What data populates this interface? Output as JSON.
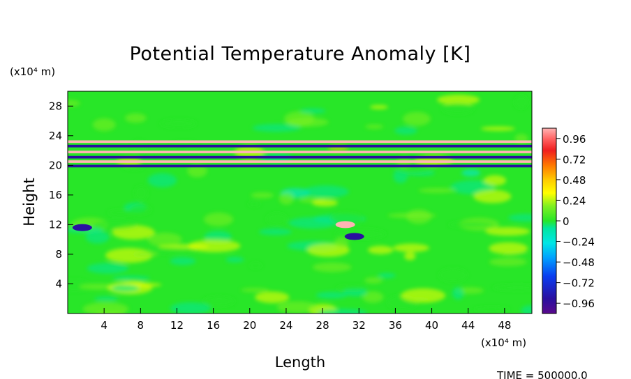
{
  "chart_data": {
    "type": "heatmap",
    "title": "Potential Temperature Anomaly [K]",
    "xlabel": "Length",
    "ylabel": "Height",
    "x_unit": "(x10⁴ m)",
    "y_unit": "(x10⁴ m)",
    "xlim": [
      0,
      51
    ],
    "ylim": [
      0,
      30
    ],
    "x_ticks": [
      4,
      8,
      12,
      16,
      20,
      24,
      28,
      32,
      36,
      40,
      44,
      48
    ],
    "y_ticks": [
      4,
      8,
      12,
      16,
      20,
      24,
      28
    ],
    "colorbar": {
      "ticks": [
        0.96,
        0.72,
        0.48,
        0.24,
        0,
        -0.24,
        -0.48,
        -0.72,
        -0.96
      ],
      "tick_labels": [
        "0.96",
        "0.72",
        "0.48",
        "0.24",
        "0",
        "−0.24",
        "−0.48",
        "−0.72",
        "−0.96"
      ],
      "range": [
        -1.08,
        1.08
      ]
    },
    "features": [
      {
        "kind": "band",
        "y": 23.2,
        "value": 0.96
      },
      {
        "kind": "band",
        "y": 22.6,
        "value": -0.96
      },
      {
        "kind": "band",
        "y": 21.8,
        "value": 0.96
      },
      {
        "kind": "band",
        "y": 21.1,
        "value": -0.96
      },
      {
        "kind": "band",
        "y": 20.5,
        "value": 0.96
      },
      {
        "kind": "band",
        "y": 19.9,
        "value": -0.96
      },
      {
        "kind": "blob",
        "x": 30.5,
        "y": 12,
        "value": 0.96
      },
      {
        "kind": "blob",
        "x": 1.6,
        "y": 11.6,
        "value": -0.96
      },
      {
        "kind": "blob",
        "x": 31.5,
        "y": 10.4,
        "value": -0.96
      }
    ],
    "footer": "TIME = 500000.0"
  }
}
